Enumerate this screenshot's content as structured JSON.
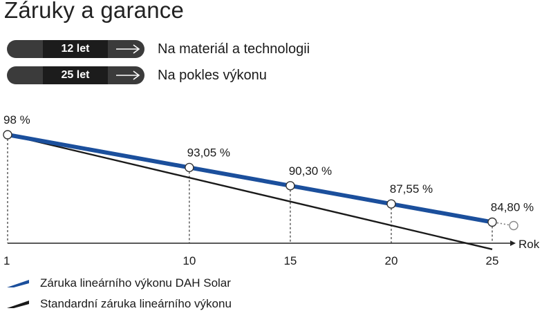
{
  "page": {
    "title": "Záruky a garance"
  },
  "warranties": [
    {
      "badge": "12 let",
      "description": "Na materiál a technologii"
    },
    {
      "badge": "25 let",
      "description": "Na pokles výkonu"
    }
  ],
  "colors": {
    "dah_line": "#1b4f9c",
    "standard_line": "#1a1a1a",
    "pill_dark": "#1c1c1c",
    "pill_light": "#3b3b3b"
  },
  "chart_data": {
    "type": "line",
    "x_axis_label": "Rok",
    "x_ticks": [
      1,
      10,
      15,
      20,
      25
    ],
    "xlim": [
      1,
      25
    ],
    "ylim": [
      84,
      98.5
    ],
    "grid": false,
    "series": [
      {
        "name": "Záruka lineárního výkonu DAH Solar",
        "color": "#1b4f9c",
        "x": [
          1,
          10,
          15,
          20,
          25
        ],
        "y": [
          98,
          93.05,
          90.3,
          87.55,
          84.8
        ],
        "labels": [
          "98 %",
          "93,05 %",
          "90,30 %",
          "87,55 %",
          "84,80 %"
        ]
      },
      {
        "name": "Standardní záruka lineárního výkonu",
        "color": "#1a1a1a",
        "x": [
          1,
          25
        ],
        "y": [
          98,
          80.7
        ]
      }
    ]
  },
  "legend": [
    {
      "label": "Záruka lineárního výkonu DAH Solar",
      "color": "#1b4f9c"
    },
    {
      "label": "Standardní záruka lineárního výkonu",
      "color": "#1a1a1a"
    }
  ]
}
